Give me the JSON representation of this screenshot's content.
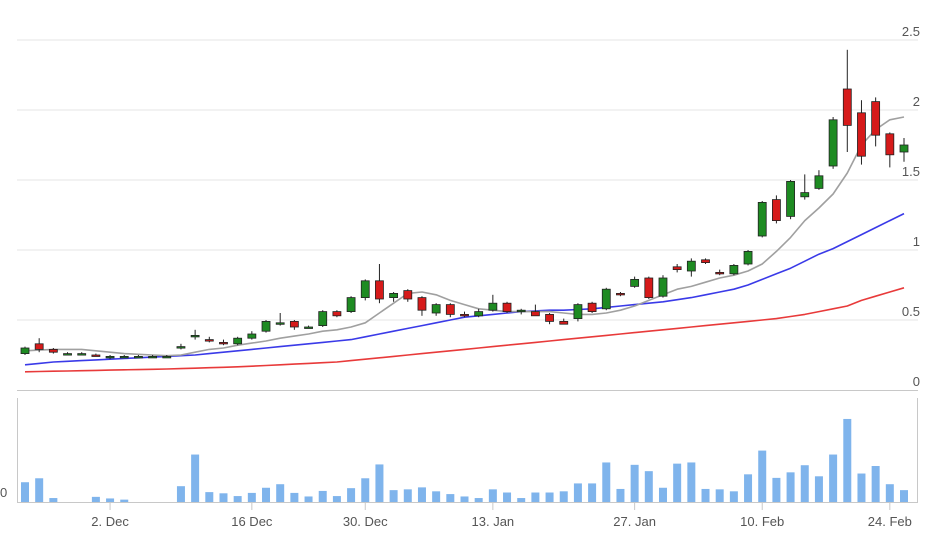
{
  "chart_data": {
    "type": "candlestick",
    "title": "",
    "xlabel": "",
    "ylabel": "",
    "ylim": [
      0,
      2.6
    ],
    "y_ticks": [
      0,
      0.5,
      1,
      1.5,
      2,
      2.5
    ],
    "y_tick_labels": [
      "0",
      "0.5",
      "1",
      "1.5",
      "2",
      "2.5"
    ],
    "x_tick_labels": [
      "2. Dec",
      "16 Dec",
      "30. Dec",
      "13. Jan",
      "27. Jan",
      "10. Feb",
      "24. Feb"
    ],
    "x_tick_index": [
      6,
      16,
      24,
      33,
      43,
      52,
      61
    ],
    "volume_axis_label": "0",
    "grid": true,
    "colors": {
      "up": "#1e8b22",
      "down": "#d61a1a",
      "ma_short": "#a0a0a0",
      "ma_mid": "#3a3ae8",
      "ma_long": "#e83a3a",
      "volume": "#7fb4ec",
      "grid": "#e6e6e6"
    },
    "ohlc": [
      [
        0.26,
        0.31,
        0.25,
        0.3
      ],
      [
        0.33,
        0.37,
        0.27,
        0.29
      ],
      [
        0.29,
        0.3,
        0.26,
        0.27
      ],
      [
        0.26,
        0.27,
        0.25,
        0.26
      ],
      [
        0.26,
        0.27,
        0.25,
        0.26
      ],
      [
        0.25,
        0.26,
        0.24,
        0.24
      ],
      [
        0.23,
        0.25,
        0.22,
        0.24
      ],
      [
        0.24,
        0.25,
        0.23,
        0.24
      ],
      [
        0.24,
        0.25,
        0.23,
        0.24
      ],
      [
        0.24,
        0.25,
        0.23,
        0.24
      ],
      [
        0.24,
        0.25,
        0.23,
        0.24
      ],
      [
        0.31,
        0.33,
        0.29,
        0.31
      ],
      [
        0.38,
        0.43,
        0.36,
        0.39
      ],
      [
        0.36,
        0.38,
        0.34,
        0.35
      ],
      [
        0.34,
        0.36,
        0.32,
        0.33
      ],
      [
        0.33,
        0.38,
        0.32,
        0.37
      ],
      [
        0.37,
        0.42,
        0.36,
        0.4
      ],
      [
        0.42,
        0.5,
        0.41,
        0.49
      ],
      [
        0.48,
        0.55,
        0.46,
        0.48
      ],
      [
        0.49,
        0.5,
        0.43,
        0.45
      ],
      [
        0.45,
        0.46,
        0.44,
        0.45
      ],
      [
        0.46,
        0.57,
        0.45,
        0.56
      ],
      [
        0.56,
        0.57,
        0.52,
        0.53
      ],
      [
        0.56,
        0.67,
        0.55,
        0.66
      ],
      [
        0.66,
        0.79,
        0.64,
        0.78
      ],
      [
        0.78,
        0.9,
        0.62,
        0.65
      ],
      [
        0.66,
        0.7,
        0.63,
        0.69
      ],
      [
        0.71,
        0.72,
        0.63,
        0.65
      ],
      [
        0.66,
        0.67,
        0.53,
        0.57
      ],
      [
        0.55,
        0.62,
        0.53,
        0.61
      ],
      [
        0.61,
        0.62,
        0.52,
        0.54
      ],
      [
        0.54,
        0.56,
        0.52,
        0.53
      ],
      [
        0.53,
        0.58,
        0.52,
        0.56
      ],
      [
        0.57,
        0.68,
        0.56,
        0.62
      ],
      [
        0.62,
        0.63,
        0.55,
        0.56
      ],
      [
        0.56,
        0.58,
        0.54,
        0.57
      ],
      [
        0.56,
        0.61,
        0.53,
        0.53
      ],
      [
        0.54,
        0.55,
        0.47,
        0.49
      ],
      [
        0.49,
        0.51,
        0.47,
        0.47
      ],
      [
        0.51,
        0.62,
        0.49,
        0.61
      ],
      [
        0.62,
        0.63,
        0.55,
        0.56
      ],
      [
        0.58,
        0.73,
        0.57,
        0.72
      ],
      [
        0.69,
        0.7,
        0.67,
        0.68
      ],
      [
        0.74,
        0.81,
        0.73,
        0.79
      ],
      [
        0.8,
        0.81,
        0.65,
        0.66
      ],
      [
        0.67,
        0.82,
        0.66,
        0.8
      ],
      [
        0.88,
        0.9,
        0.84,
        0.86
      ],
      [
        0.85,
        0.94,
        0.81,
        0.92
      ],
      [
        0.93,
        0.94,
        0.9,
        0.91
      ],
      [
        0.84,
        0.86,
        0.82,
        0.83
      ],
      [
        0.83,
        0.9,
        0.82,
        0.89
      ],
      [
        0.9,
        1.0,
        0.89,
        0.99
      ],
      [
        1.1,
        1.35,
        1.09,
        1.34
      ],
      [
        1.36,
        1.39,
        1.19,
        1.21
      ],
      [
        1.24,
        1.5,
        1.22,
        1.49
      ],
      [
        1.38,
        1.54,
        1.36,
        1.41
      ],
      [
        1.44,
        1.57,
        1.43,
        1.53
      ],
      [
        1.6,
        1.95,
        1.58,
        1.93
      ],
      [
        2.15,
        2.43,
        1.7,
        1.89
      ],
      [
        1.98,
        2.07,
        1.61,
        1.67
      ],
      [
        2.06,
        2.09,
        1.74,
        1.82
      ],
      [
        1.83,
        1.84,
        1.59,
        1.68
      ],
      [
        1.7,
        1.8,
        1.63,
        1.75
      ]
    ],
    "volume": [
      5,
      6,
      1,
      0,
      0,
      1.3,
      0.9,
      0.6,
      0,
      0,
      0,
      4,
      12,
      2.5,
      2.2,
      1.5,
      2.3,
      3.6,
      4.5,
      2.3,
      1.4,
      2.8,
      1.5,
      3.5,
      6,
      9.5,
      3,
      3.2,
      3.7,
      2.7,
      2,
      1.4,
      1,
      3.2,
      2.4,
      1,
      2.4,
      2.4,
      2.7,
      4.7,
      4.7,
      10,
      3.3,
      9.4,
      7.8,
      3.6,
      9.7,
      10,
      3.3,
      3.2,
      2.7,
      7,
      13,
      6.1,
      7.5,
      9.3,
      6.5,
      12,
      21,
      7.2,
      9.1,
      4.5,
      3
    ],
    "volume_max": 22,
    "ma_short": [
      0.28,
      0.285,
      0.29,
      0.29,
      0.29,
      0.28,
      0.27,
      0.26,
      0.255,
      0.25,
      0.245,
      0.25,
      0.27,
      0.29,
      0.3,
      0.32,
      0.335,
      0.35,
      0.37,
      0.385,
      0.4,
      0.42,
      0.43,
      0.45,
      0.48,
      0.55,
      0.62,
      0.69,
      0.7,
      0.68,
      0.64,
      0.61,
      0.58,
      0.57,
      0.56,
      0.56,
      0.56,
      0.56,
      0.55,
      0.54,
      0.54,
      0.55,
      0.57,
      0.6,
      0.64,
      0.68,
      0.72,
      0.74,
      0.77,
      0.8,
      0.82,
      0.85,
      0.9,
      0.99,
      1.09,
      1.21,
      1.3,
      1.4,
      1.55,
      1.75,
      1.86,
      1.93,
      1.95
    ],
    "ma_mid": [
      0.18,
      0.19,
      0.2,
      0.205,
      0.21,
      0.215,
      0.22,
      0.225,
      0.23,
      0.235,
      0.24,
      0.245,
      0.25,
      0.26,
      0.27,
      0.28,
      0.29,
      0.3,
      0.31,
      0.32,
      0.33,
      0.34,
      0.35,
      0.36,
      0.38,
      0.4,
      0.42,
      0.44,
      0.46,
      0.48,
      0.5,
      0.52,
      0.53,
      0.54,
      0.55,
      0.56,
      0.565,
      0.57,
      0.57,
      0.575,
      0.58,
      0.59,
      0.6,
      0.61,
      0.62,
      0.63,
      0.645,
      0.66,
      0.68,
      0.7,
      0.72,
      0.75,
      0.79,
      0.83,
      0.87,
      0.92,
      0.97,
      1.01,
      1.06,
      1.11,
      1.16,
      1.21,
      1.26
    ],
    "ma_long": [
      0.13,
      0.132,
      0.134,
      0.136,
      0.138,
      0.14,
      0.142,
      0.144,
      0.146,
      0.148,
      0.15,
      0.153,
      0.156,
      0.159,
      0.162,
      0.166,
      0.17,
      0.175,
      0.18,
      0.185,
      0.19,
      0.195,
      0.2,
      0.21,
      0.22,
      0.23,
      0.24,
      0.25,
      0.26,
      0.27,
      0.28,
      0.29,
      0.3,
      0.31,
      0.32,
      0.33,
      0.34,
      0.35,
      0.36,
      0.37,
      0.38,
      0.39,
      0.4,
      0.41,
      0.42,
      0.43,
      0.44,
      0.45,
      0.46,
      0.47,
      0.48,
      0.49,
      0.5,
      0.51,
      0.525,
      0.54,
      0.56,
      0.58,
      0.6,
      0.64,
      0.67,
      0.7,
      0.73
    ]
  }
}
